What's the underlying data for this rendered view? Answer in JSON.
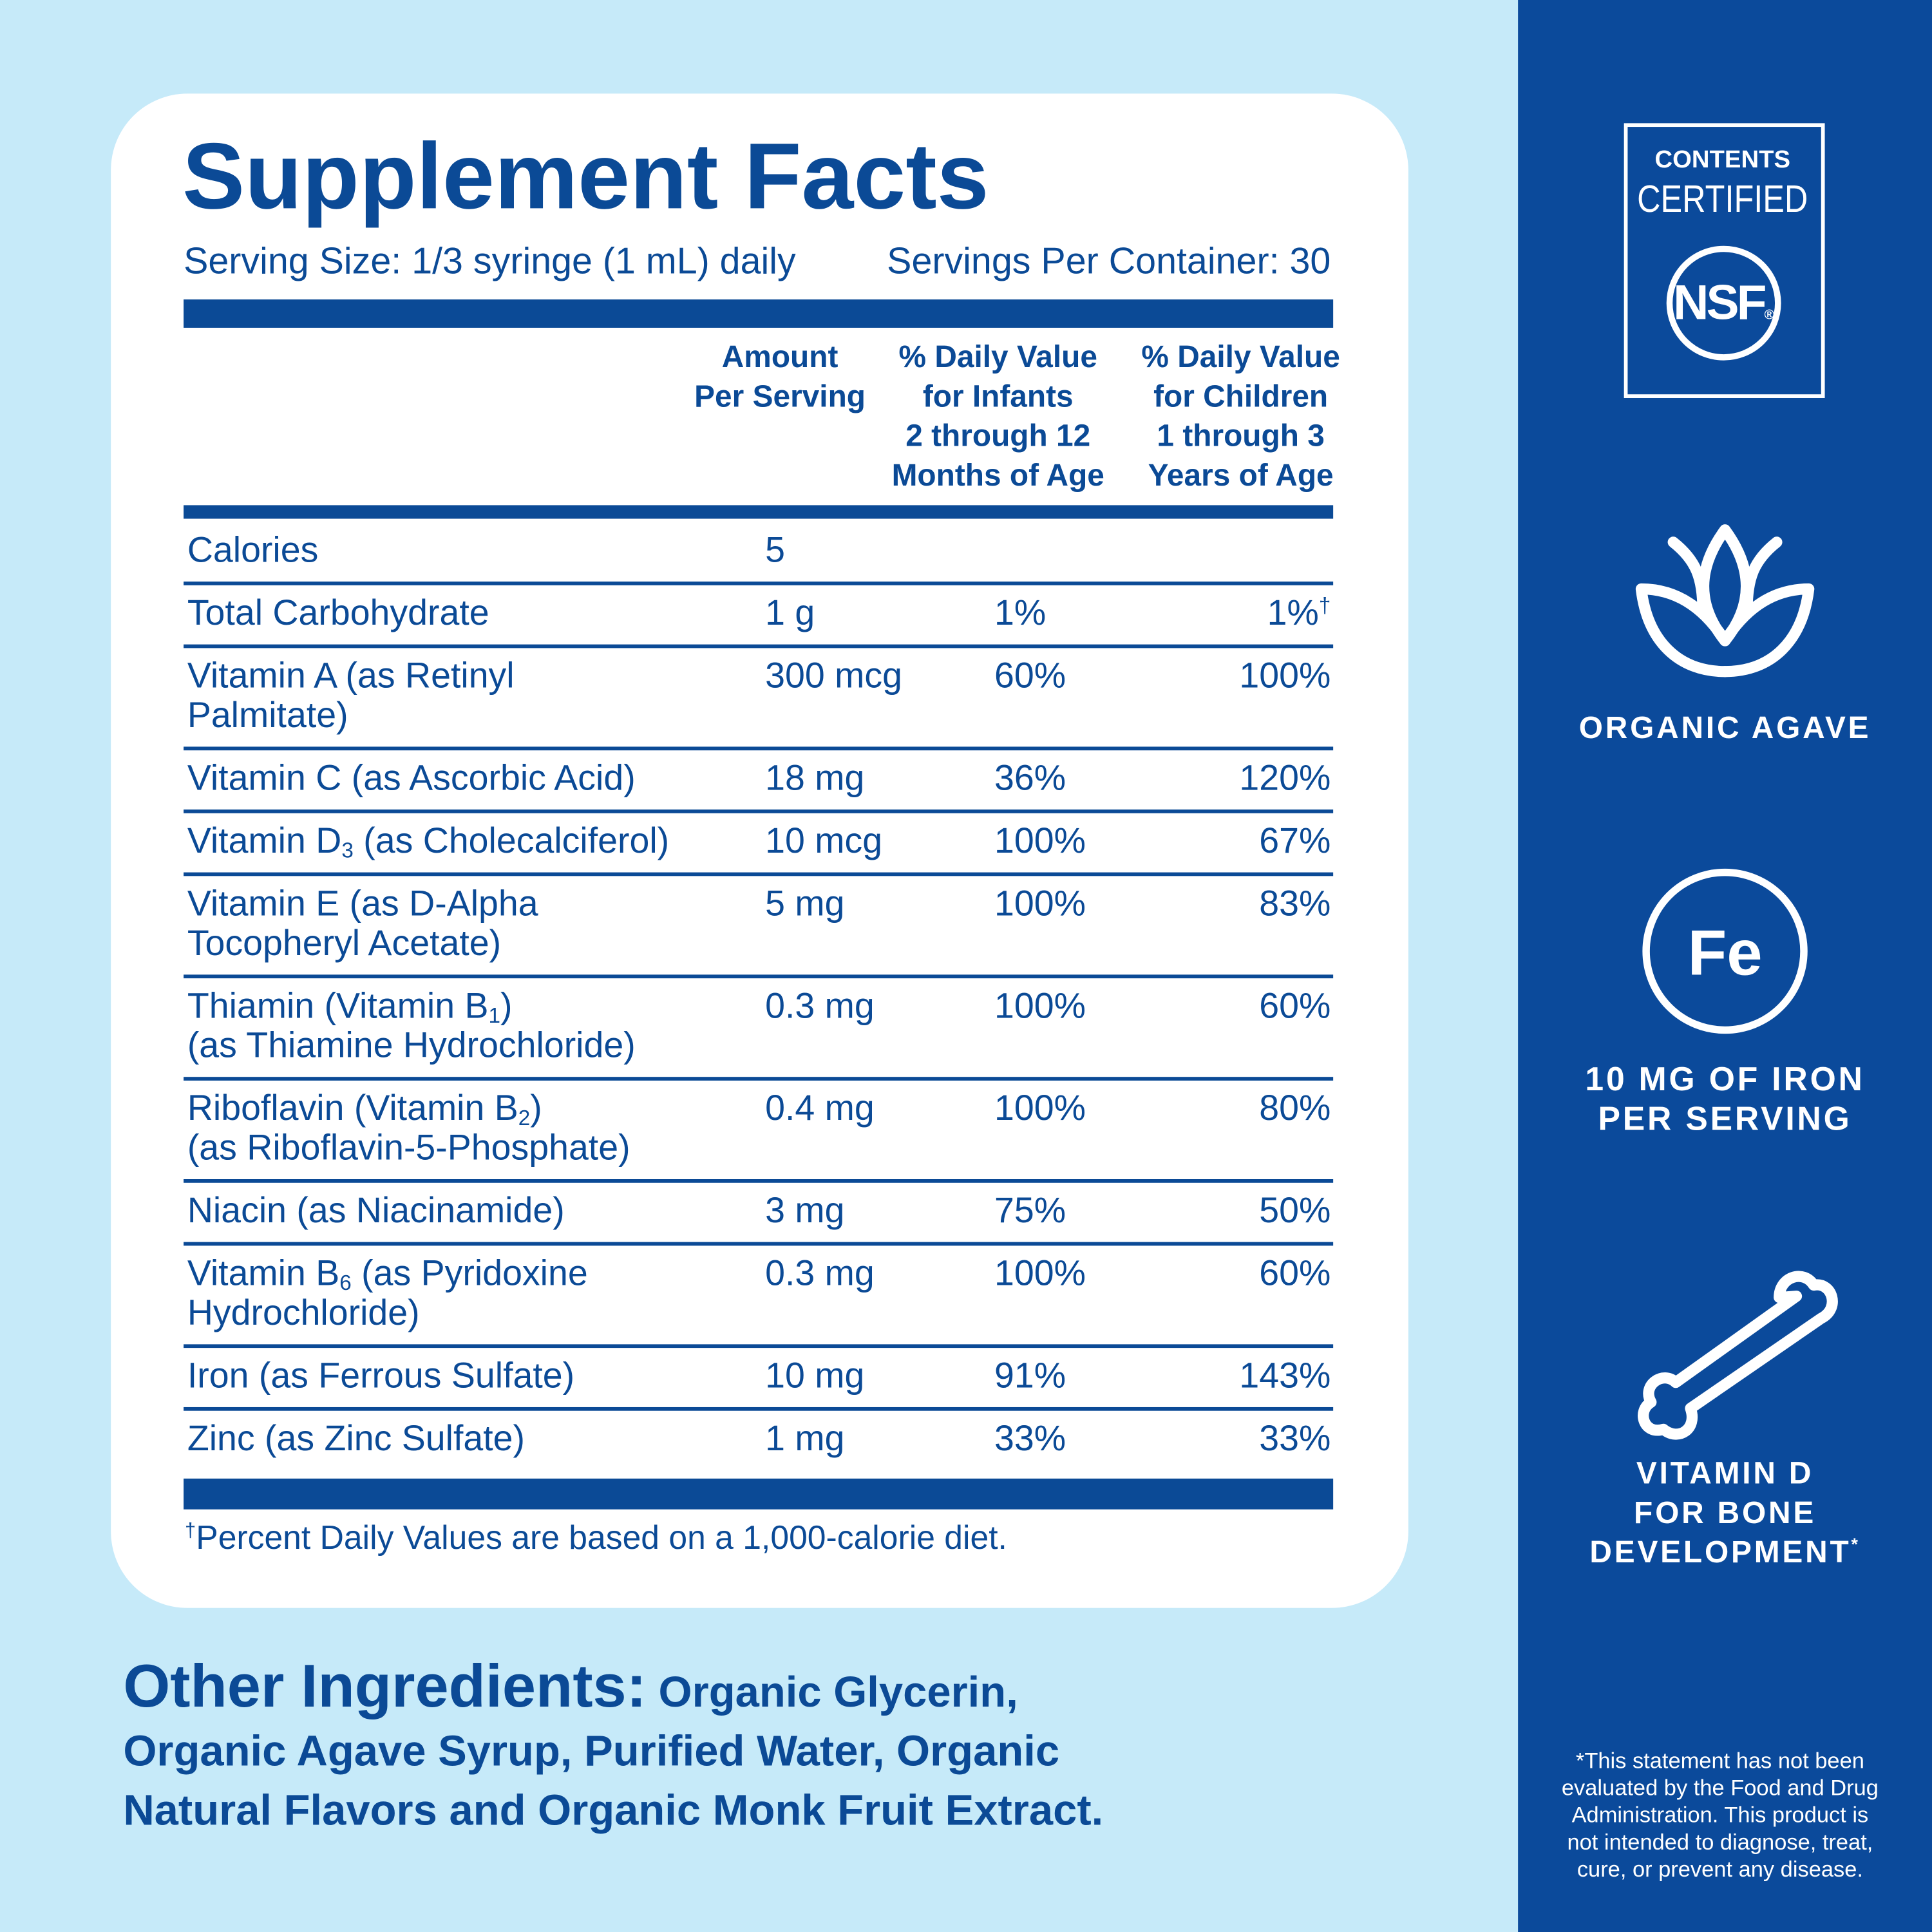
{
  "header": {
    "title": "Supplement Facts",
    "serving_size": "Serving Size: 1/3 syringe (1 mL) daily",
    "servings_per_container": "Servings Per Container: 30"
  },
  "table": {
    "columns": [
      [
        "Amount",
        "Per Serving"
      ],
      [
        "% Daily Value",
        "for Infants",
        "2 through 12",
        "Months of Age"
      ],
      [
        "% Daily Value",
        "for Children",
        "1 through 3",
        "Years of Age"
      ]
    ],
    "rows": [
      {
        "name": [
          [
            "Calories"
          ]
        ],
        "amount": "5"
      },
      {
        "name": [
          [
            "Total Carbohydrate"
          ]
        ],
        "amount": "1 g",
        "dv_infants": "1%",
        "dv_children": "1%",
        "dv_children_note": "†"
      },
      {
        "name": [
          [
            "Vitamin A (as Retinyl"
          ],
          [
            "Palmitate)"
          ]
        ],
        "amount": "300 mcg",
        "dv_infants": "60%",
        "dv_children": "100%"
      },
      {
        "name": [
          [
            "Vitamin C (as Ascorbic Acid)"
          ]
        ],
        "amount": "18 mg",
        "dv_infants": "36%",
        "dv_children": "120%"
      },
      {
        "name": [
          [
            "Vitamin D",
            {
              "sub": "3"
            },
            " (as Cholecalciferol)"
          ]
        ],
        "amount": "10 mcg",
        "dv_infants": "100%",
        "dv_children": "67%"
      },
      {
        "name": [
          [
            "Vitamin E (as D-Alpha"
          ],
          [
            "Tocopheryl Acetate)"
          ]
        ],
        "amount": "5 mg",
        "dv_infants": "100%",
        "dv_children": "83%"
      },
      {
        "name": [
          [
            "Thiamin (Vitamin B",
            {
              "sub": "1"
            },
            ")"
          ],
          [
            "(as Thiamine Hydrochloride)"
          ]
        ],
        "amount": "0.3 mg",
        "dv_infants": "100%",
        "dv_children": "60%"
      },
      {
        "name": [
          [
            "Riboflavin (Vitamin B",
            {
              "sub": "2"
            },
            ")"
          ],
          [
            "(as Riboflavin-5-Phosphate)"
          ]
        ],
        "amount": "0.4 mg",
        "dv_infants": "100%",
        "dv_children": "80%"
      },
      {
        "name": [
          [
            "Niacin (as Niacinamide)"
          ]
        ],
        "amount": "3 mg",
        "dv_infants": "75%",
        "dv_children": "50%"
      },
      {
        "name": [
          [
            "Vitamin B",
            {
              "sub": "6"
            },
            " (as Pyridoxine"
          ],
          [
            "Hydrochloride)"
          ]
        ],
        "amount": "0.3 mg",
        "dv_infants": "100%",
        "dv_children": "60%"
      },
      {
        "name": [
          [
            "Iron (as Ferrous Sulfate)"
          ]
        ],
        "amount": "10 mg",
        "dv_infants": "91%",
        "dv_children": "143%"
      },
      {
        "name": [
          [
            "Zinc (as Zinc Sulfate)"
          ]
        ],
        "amount": "1 mg",
        "dv_infants": "33%",
        "dv_children": "33%"
      }
    ],
    "footnote": {
      "mark": "†",
      "text": "Percent Daily Values are based on a 1,000-calorie diet."
    }
  },
  "other_ingredients": {
    "label": "Other Ingredients:",
    "lines": [
      "Organic Glycerin,",
      "Organic Agave Syrup, Purified Water, Organic",
      "Natural Flavors and Organic Monk Fruit Extract."
    ]
  },
  "sidebar": {
    "badge": {
      "line1": "CONTENTS",
      "line2": "CERTIFIED",
      "logo": "NSF",
      "registered": "®"
    },
    "agave": {
      "label": "ORGANIC AGAVE"
    },
    "iron": {
      "symbol": "Fe",
      "lines": [
        "10 MG OF IRON",
        "PER SERVING"
      ]
    },
    "bone": {
      "lines": [
        "VITAMIN D",
        "FOR BONE",
        "DEVELOPMENT"
      ],
      "mark": "*"
    },
    "disclaimer": [
      "*This statement has not been",
      "evaluated by the Food and Drug",
      "Administration. This product is",
      "not intended to diagnose, treat,",
      "cure, or prevent any disease."
    ]
  }
}
